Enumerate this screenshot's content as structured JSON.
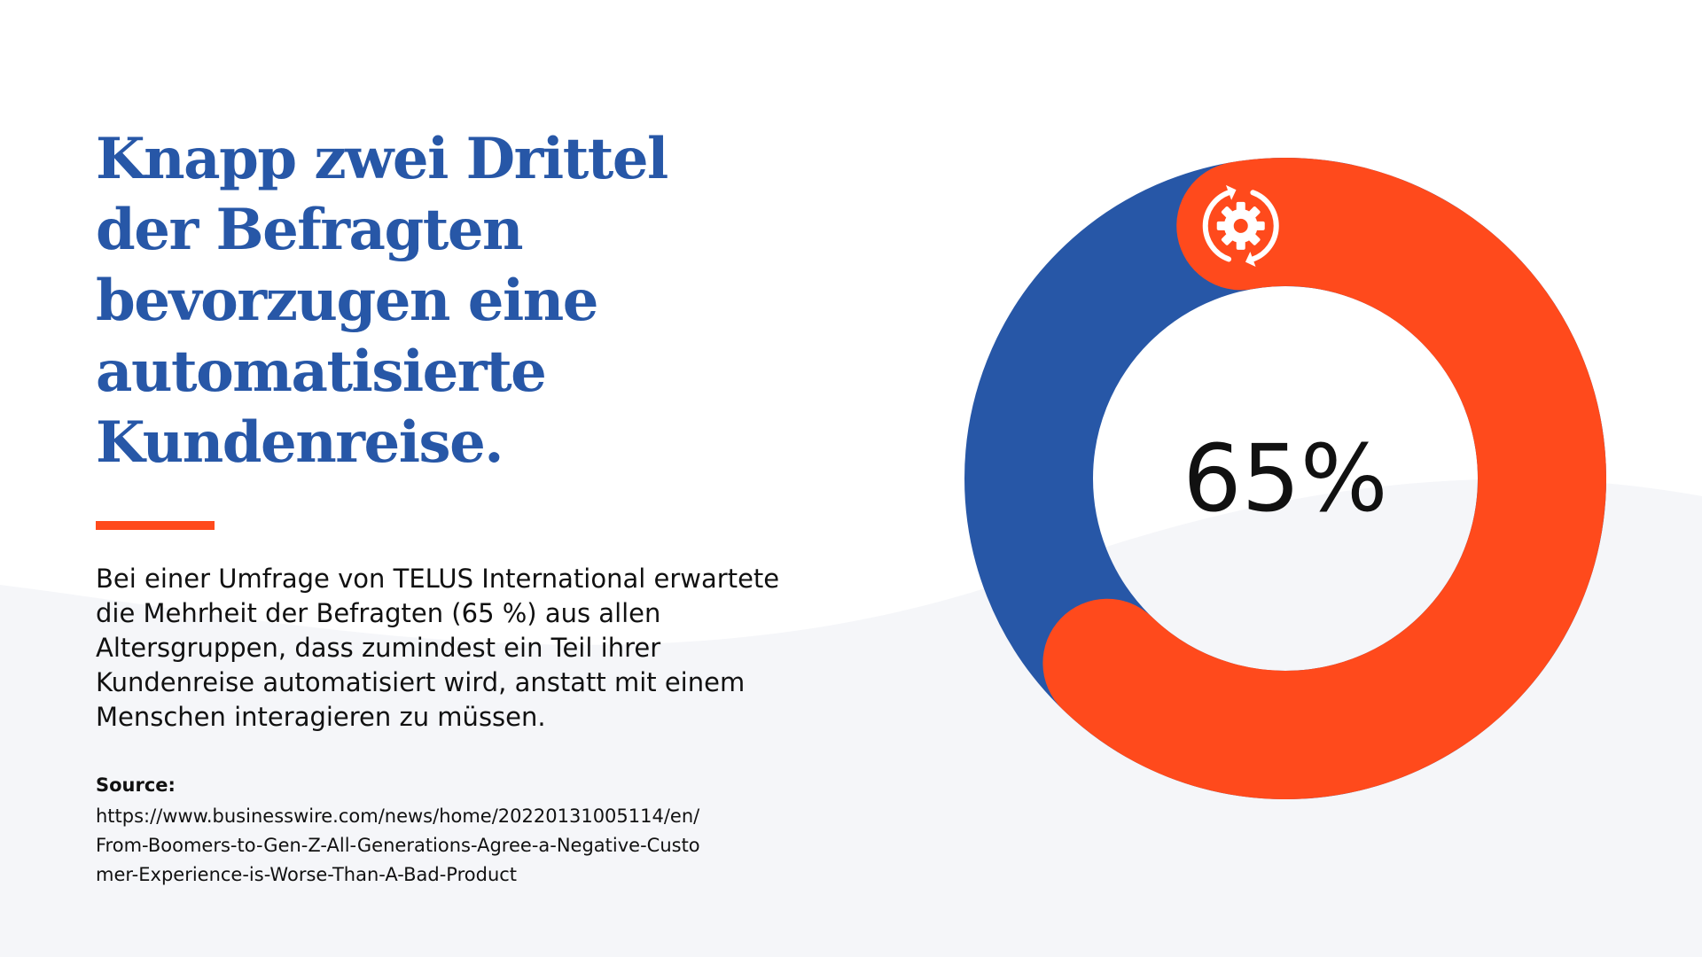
{
  "headline": "Knapp zwei Drittel der Befragten bevorzugen eine automatisierte Kundenreise.",
  "body": "Bei einer Umfrage von TELUS International erwartete die Mehrheit der Befragten (65 %) aus allen Altersgruppen, dass zumindest ein Teil ihrer Kundenreise automatisiert wird, anstatt mit einem Menschen interagieren zu müssen.",
  "source": {
    "label": "Source:",
    "url": "https://www.businesswire.com/news/home/20220131005114/en/From-Boomers-to-Gen-Z-All-Generations-Agree-a-Negative-Customer-Experience-is-Worse-Than-A-Bad-Product"
  },
  "colors": {
    "primary_blue": "#2757a7",
    "accent_orange": "#ff4a1c",
    "text": "#111111",
    "background_wave": "#f5f6f9"
  },
  "icons": {
    "segment_icon": "gear-sync-icon"
  },
  "chart_data": {
    "type": "pie",
    "style": "donut",
    "center_label": "65%",
    "slices": [
      {
        "value": 65,
        "color": "#ff4a1c"
      },
      {
        "value": 35,
        "color": "#2757a7"
      }
    ]
  }
}
